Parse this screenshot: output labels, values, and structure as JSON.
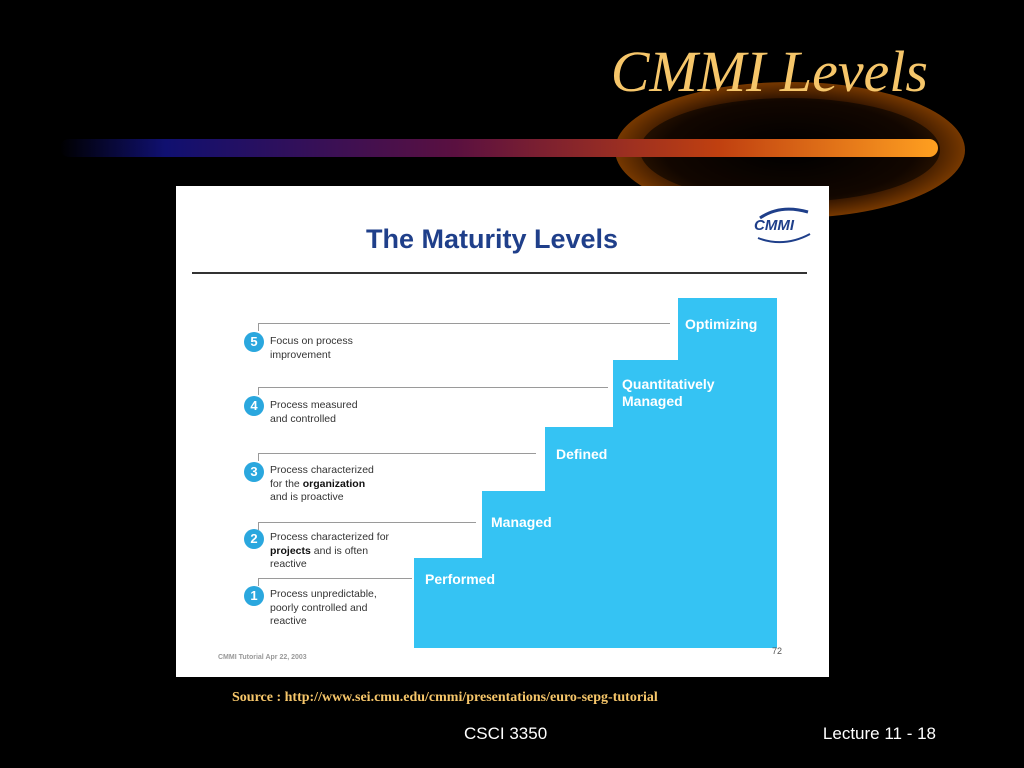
{
  "slide": {
    "title": "CMMI Levels",
    "source": "Source : http://www.sei.cmu.edu/cmmi/presentations/euro-sepg-tutorial",
    "footer_center": "CSCI 3350",
    "footer_right": "Lecture 11 - 18"
  },
  "panel": {
    "title": "The Maturity Levels",
    "logo_text": "CMMI",
    "footnote": "CMMI Tutorial Apr 22, 2003",
    "page_number": "72"
  },
  "levels": [
    {
      "number": "1",
      "name": "Performed",
      "desc": [
        "Process unpredictable,",
        "poorly controlled and",
        "reactive"
      ]
    },
    {
      "number": "2",
      "name": "Managed",
      "desc": [
        "Process characterized for",
        "projects and is often",
        "reactive"
      ]
    },
    {
      "number": "3",
      "name": "Defined",
      "desc": [
        "Process characterized",
        "for the organization",
        "and is proactive"
      ]
    },
    {
      "number": "4",
      "name": "Quantitatively Managed",
      "desc": [
        "Process measured",
        "and controlled"
      ]
    },
    {
      "number": "5",
      "name": "Optimizing",
      "desc": [
        "Focus on process",
        "improvement"
      ]
    }
  ],
  "colors": {
    "title": "#f6c66a",
    "step": "#35c3f3",
    "badge": "#2aa7de",
    "panel_title": "#1f3f8a"
  }
}
